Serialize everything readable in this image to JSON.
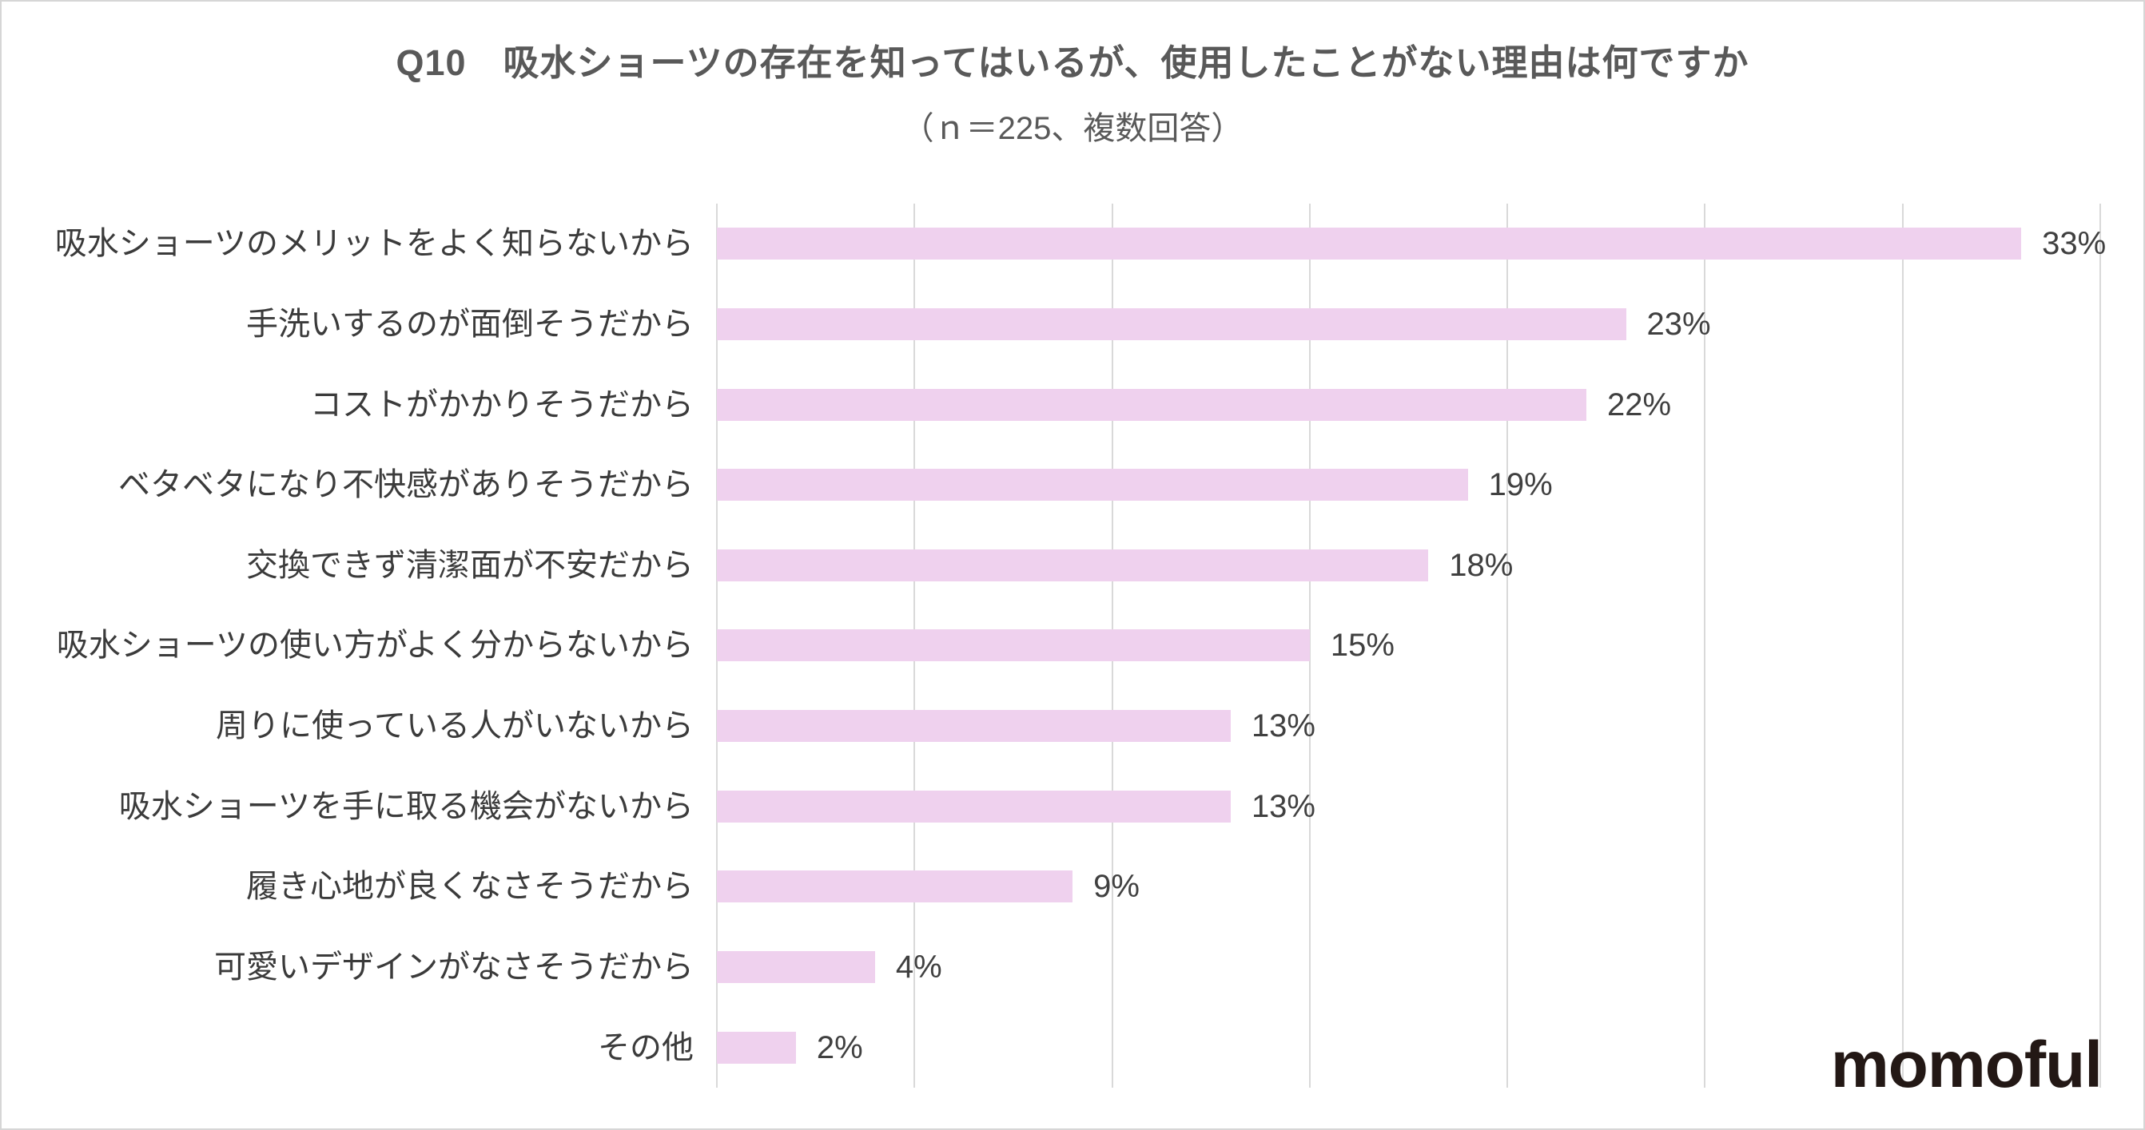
{
  "colors": {
    "bar": "#efd1ee",
    "gridline": "#d9d9d9",
    "title_text": "#595959",
    "label_text": "#3b3b3b",
    "value_text": "#404040",
    "logo_text": "#231815",
    "background": "#ffffff"
  },
  "brand": {
    "logo_text": "momoful"
  },
  "chart_data": {
    "type": "bar",
    "orientation": "horizontal",
    "title": "Q10　吸水ショーツの存在を知ってはいるが、使用したことがない理由は何ですか",
    "subtitle": "（ｎ＝225、複数回答）",
    "categories": [
      "吸水ショーツのメリットをよく知らないから",
      "手洗いするのが面倒そうだから",
      "コストがかかりそうだから",
      "ベタベタになり不快感がありそうだから",
      "交換できず清潔面が不安だから",
      "吸水ショーツの使い方がよく分からないから",
      "周りに使っている人がいないから",
      "吸水ショーツを手に取る機会がないから",
      "履き心地が良くなさそうだから",
      "可愛いデザインがなさそうだから",
      "その他"
    ],
    "values": [
      33,
      23,
      22,
      19,
      18,
      15,
      13,
      13,
      9,
      4,
      2
    ],
    "value_suffix": "%",
    "xlim": [
      0,
      35
    ],
    "gridline_interval": 5,
    "grid": true,
    "data_labels": true,
    "legend": "none",
    "x_tick_labels": "none"
  }
}
